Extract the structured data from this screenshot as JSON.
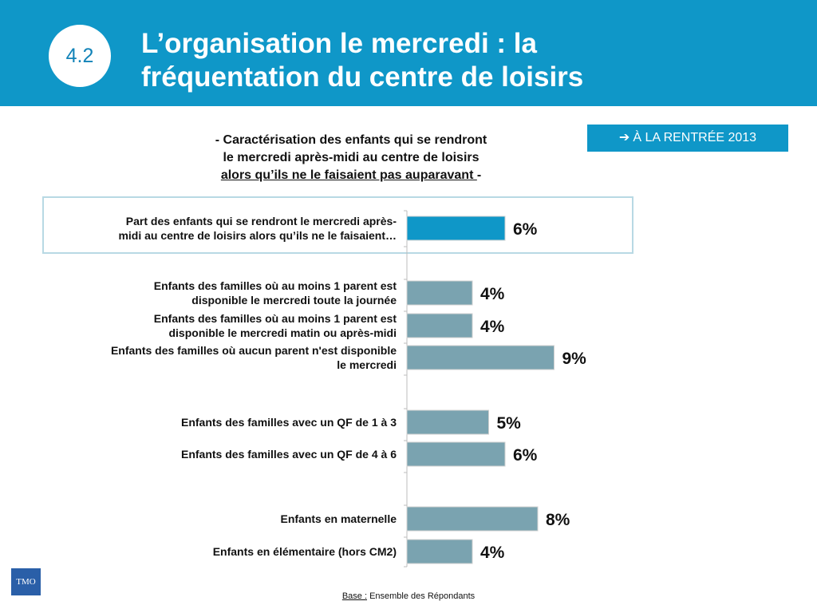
{
  "header": {
    "badge": "4.2",
    "title_line1": "L’organisation le mercredi : la",
    "title_line2": "fréquentation du centre de loisirs"
  },
  "tag": {
    "arrow": "➔",
    "label": "À LA RENTRÉE 2013"
  },
  "subtitle": {
    "line1": "- Caractérisation des enfants qui se rendront",
    "line2": "le mercredi après-midi au centre de loisirs",
    "line3_underlined": "alors qu’ils ne le faisaient pas auparavant ",
    "line3_suffix": "-"
  },
  "footer": {
    "base_label": "Base :",
    "base_text": " Ensemble des Répondants"
  },
  "logo": {
    "text": "TMO"
  },
  "colors": {
    "header": "#0f97c8",
    "highlight_bar": "#0f97c8",
    "bar": "#7aa3b0"
  },
  "chart_data": {
    "type": "bar",
    "orientation": "horizontal",
    "categories": [
      [
        "Part des enfants qui se rendront  le mercredi après-",
        "midi au centre de loisirs alors qu’ils ne le faisaient…"
      ],
      [
        "Enfants des familles où au moins 1 parent est",
        "disponible le mercredi toute la journée"
      ],
      [
        "Enfants des familles où au moins 1 parent est",
        "disponible le mercredi matin ou après-midi"
      ],
      [
        "Enfants des familles où aucun parent n'est disponible",
        "le mercredi"
      ],
      [
        "Enfants des familles avec un QF de 1 à 3"
      ],
      [
        "Enfants des familles avec un QF de 4 à 6"
      ],
      [
        "Enfants en maternelle"
      ],
      [
        "Enfants en élémentaire (hors CM2)"
      ]
    ],
    "values": [
      6,
      4,
      4,
      9,
      5,
      6,
      8,
      4
    ],
    "data_labels": [
      "6%",
      "4%",
      "4%",
      "9%",
      "5%",
      "6%",
      "8%",
      "4%"
    ],
    "highlighted_index": 0,
    "unit": "%"
  }
}
